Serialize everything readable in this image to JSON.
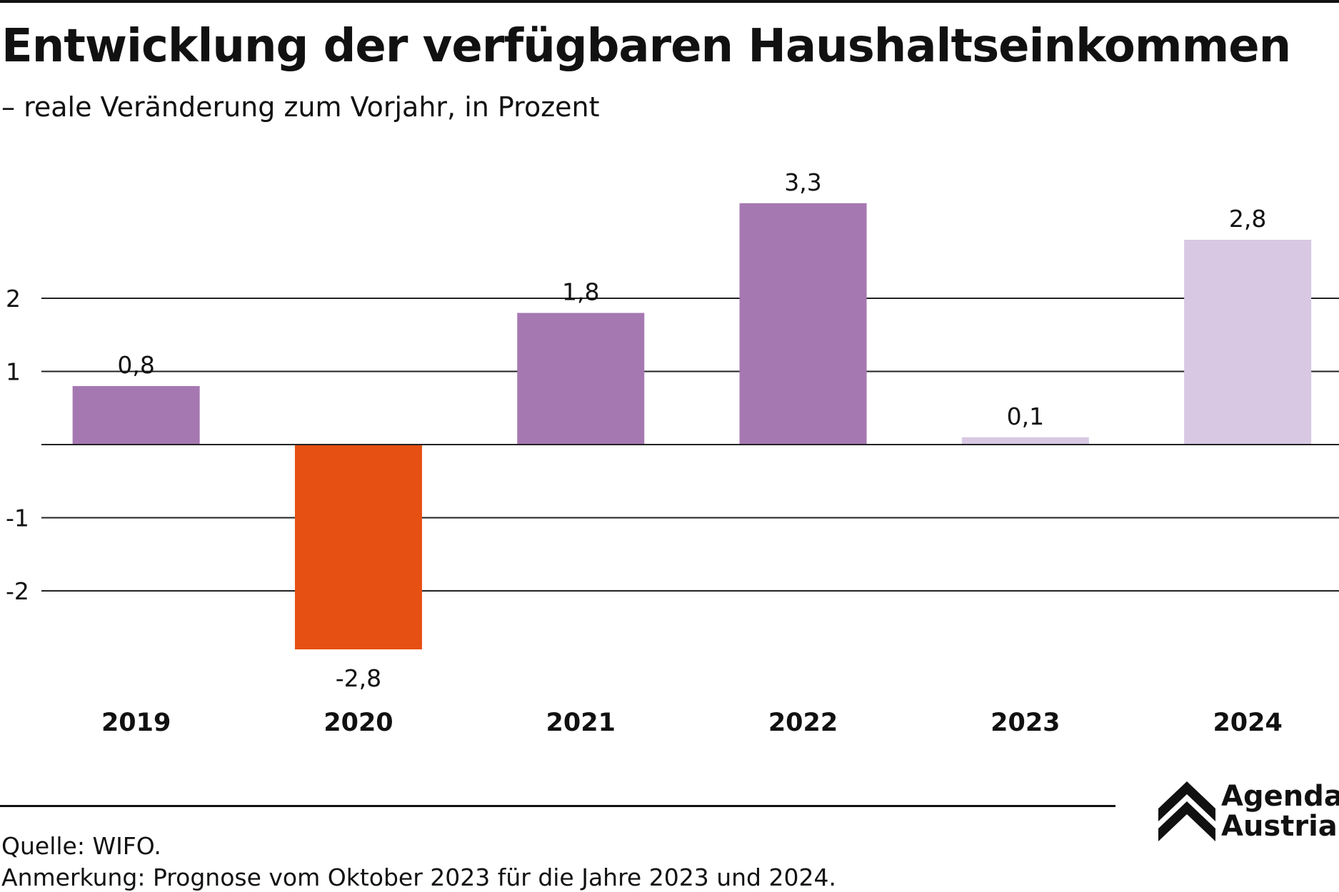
{
  "header": {
    "title": "Entwicklung der verfügbaren Haushaltseinkommen",
    "subtitle": "– reale Veränderung zum Vorjahr, in Prozent"
  },
  "footer": {
    "source": "Quelle: WIFO.",
    "note": "Anmerkung: Prognose vom Oktober 2023 für die Jahre 2023 und 2024."
  },
  "logo": {
    "line1": "Agenda",
    "line2": "Austria",
    "icon": "double-chevron-up-icon"
  },
  "chart_data": {
    "type": "bar",
    "title": "Entwicklung der verfügbaren Haushaltseinkommen",
    "subtitle": "– reale Veränderung zum Vorjahr, in Prozent",
    "categories": [
      "2019",
      "2020",
      "2021",
      "2022",
      "2023",
      "2024"
    ],
    "values": [
      0.8,
      -2.8,
      1.8,
      3.3,
      0.1,
      2.8
    ],
    "value_labels": [
      "0,8",
      "-2,8",
      "1,8",
      "3,3",
      "0,1",
      "2,8"
    ],
    "bar_colors": [
      "#a678b2",
      "#e65012",
      "#a678b2",
      "#a678b2",
      "#d8c8e3",
      "#d8c8e3"
    ],
    "colors": {
      "actual": "#a678b2",
      "negative": "#e65012",
      "forecast": "#d8c8e3"
    },
    "yticks": [
      2,
      1,
      -1,
      -2
    ],
    "ytick_labels": [
      "2",
      "1",
      "-1",
      "-2"
    ],
    "ylim": [
      -3.25,
      3.55
    ],
    "xlabel": "",
    "ylabel": "",
    "grid": true
  }
}
